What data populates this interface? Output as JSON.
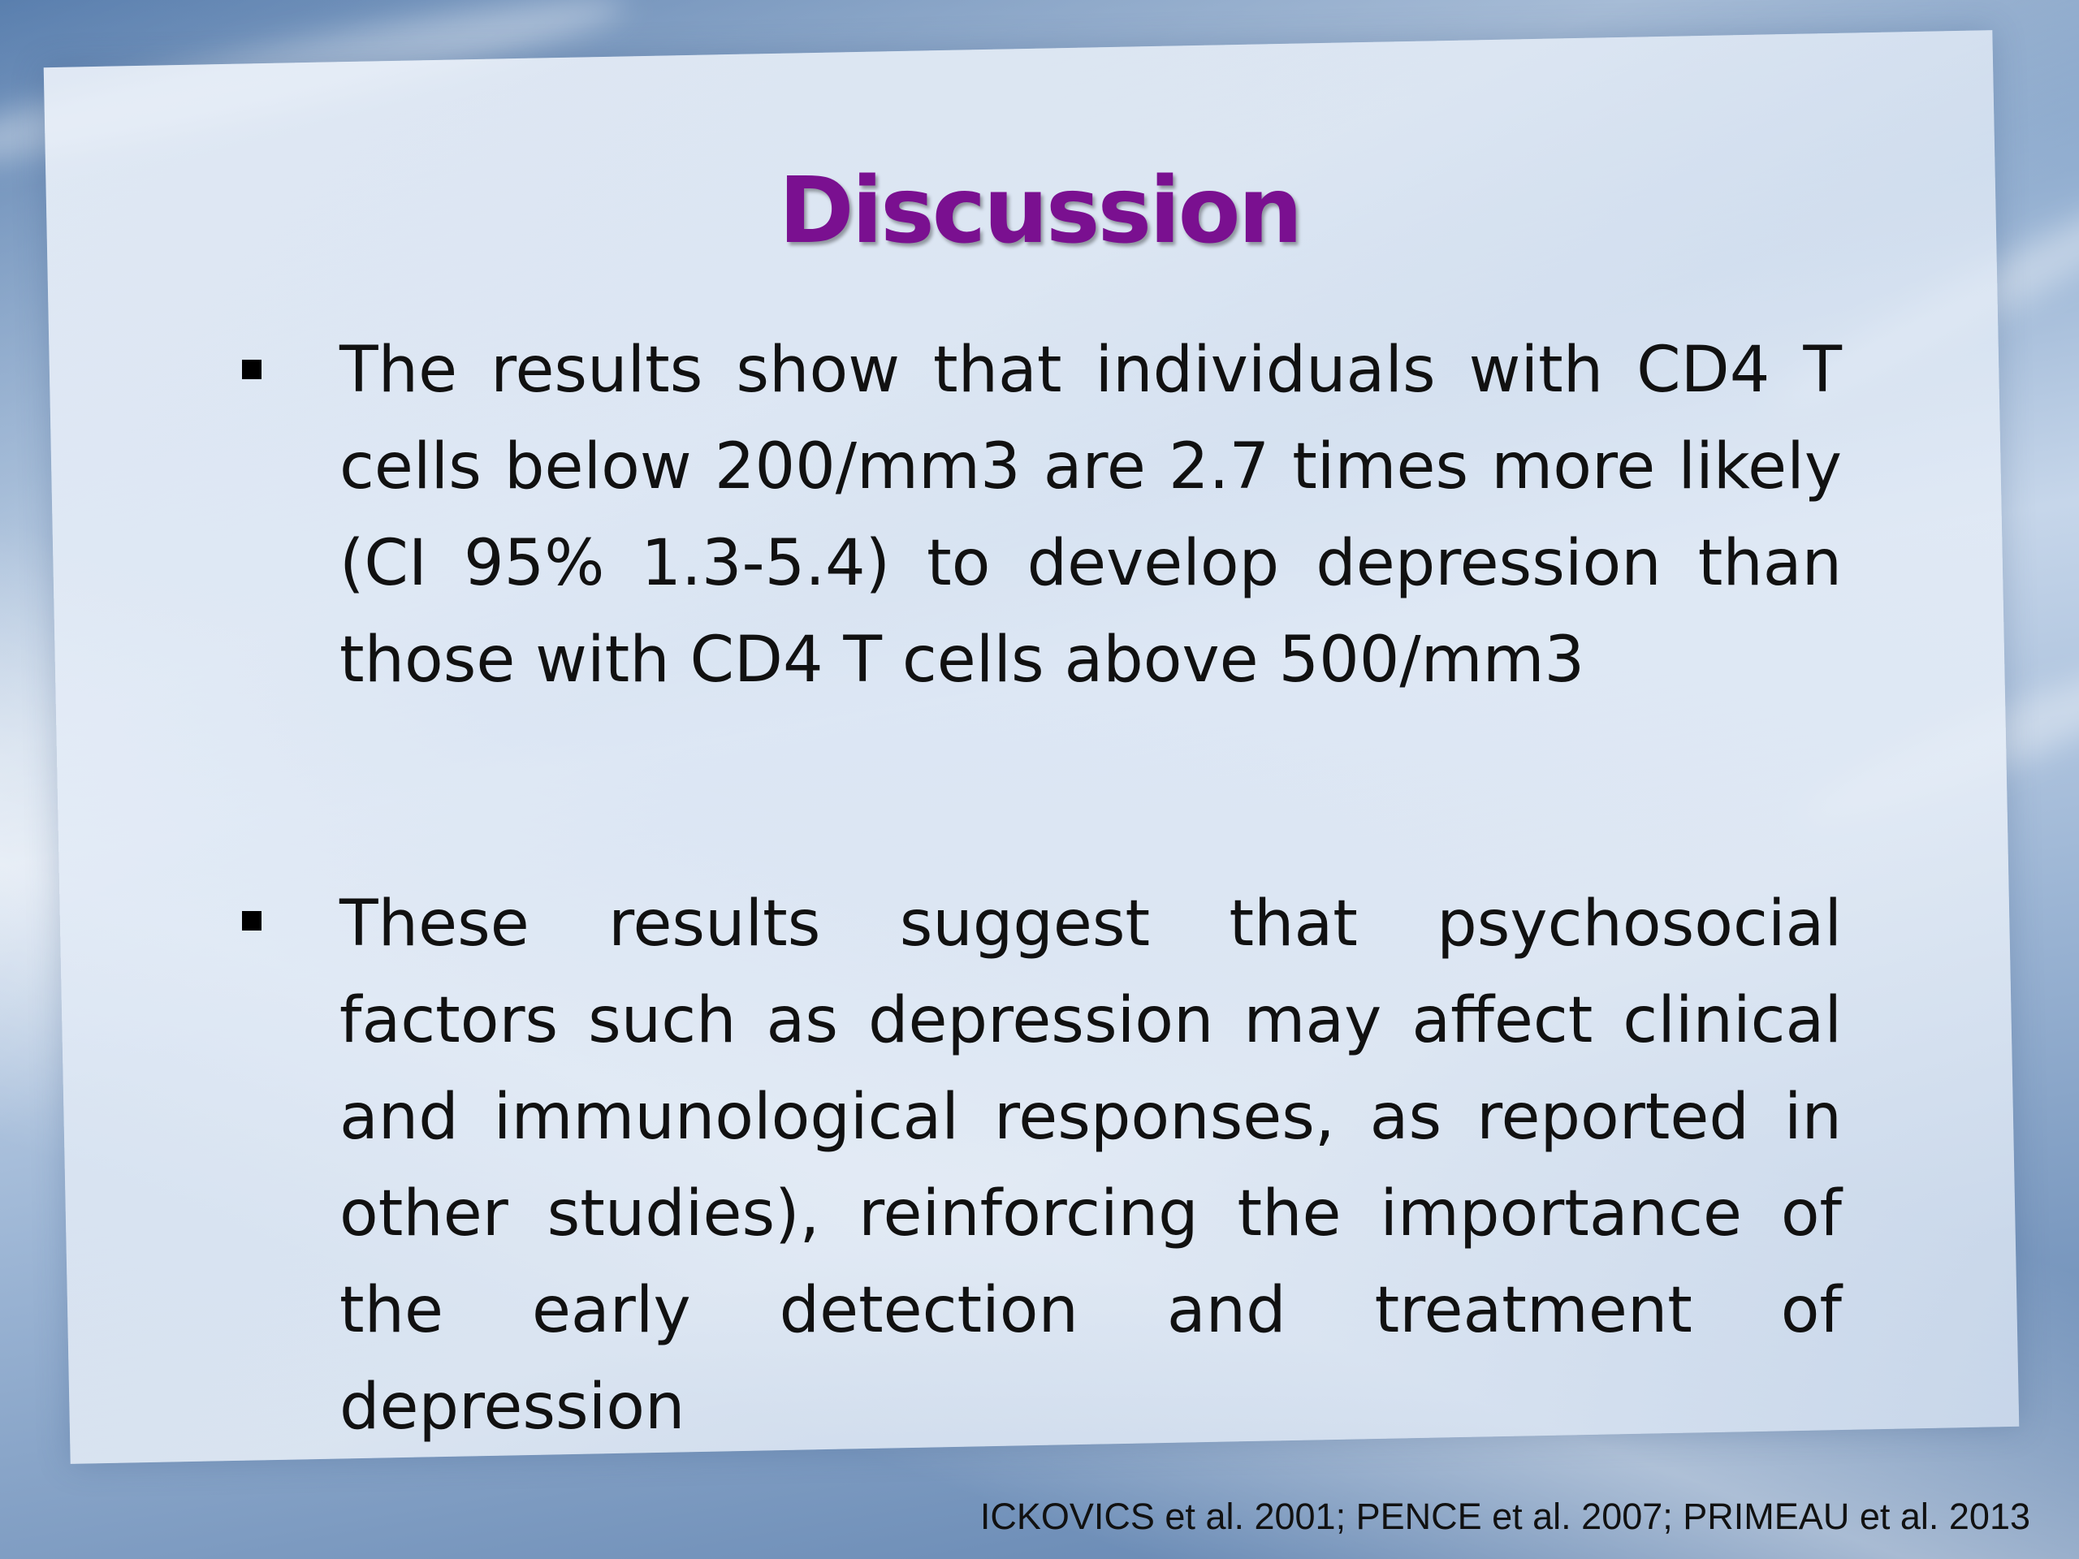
{
  "slide": {
    "title": "Discussion",
    "bullets": [
      {
        "text": "The results show that individuals with CD4 T cells below 200/mm3 are 2.7 times more likely (CI 95% 1.3-5.4) to develop depression than those with CD4 T cells above 500/mm3"
      },
      {
        "text": "These results suggest that psychosocial factors such as depression may affect clinical and immunological responses, as reported in other studies), reinforcing the importance of the early detection and treatment of depression"
      }
    ],
    "citation": "ICKOVICS et al. 2001; PENCE et al. 2007; PRIMEAU et al. 2013",
    "colors": {
      "title": "#7a1090",
      "text": "#111111",
      "background": "#8aa8cc"
    },
    "bullet_icon": "square-bullet-icon"
  }
}
